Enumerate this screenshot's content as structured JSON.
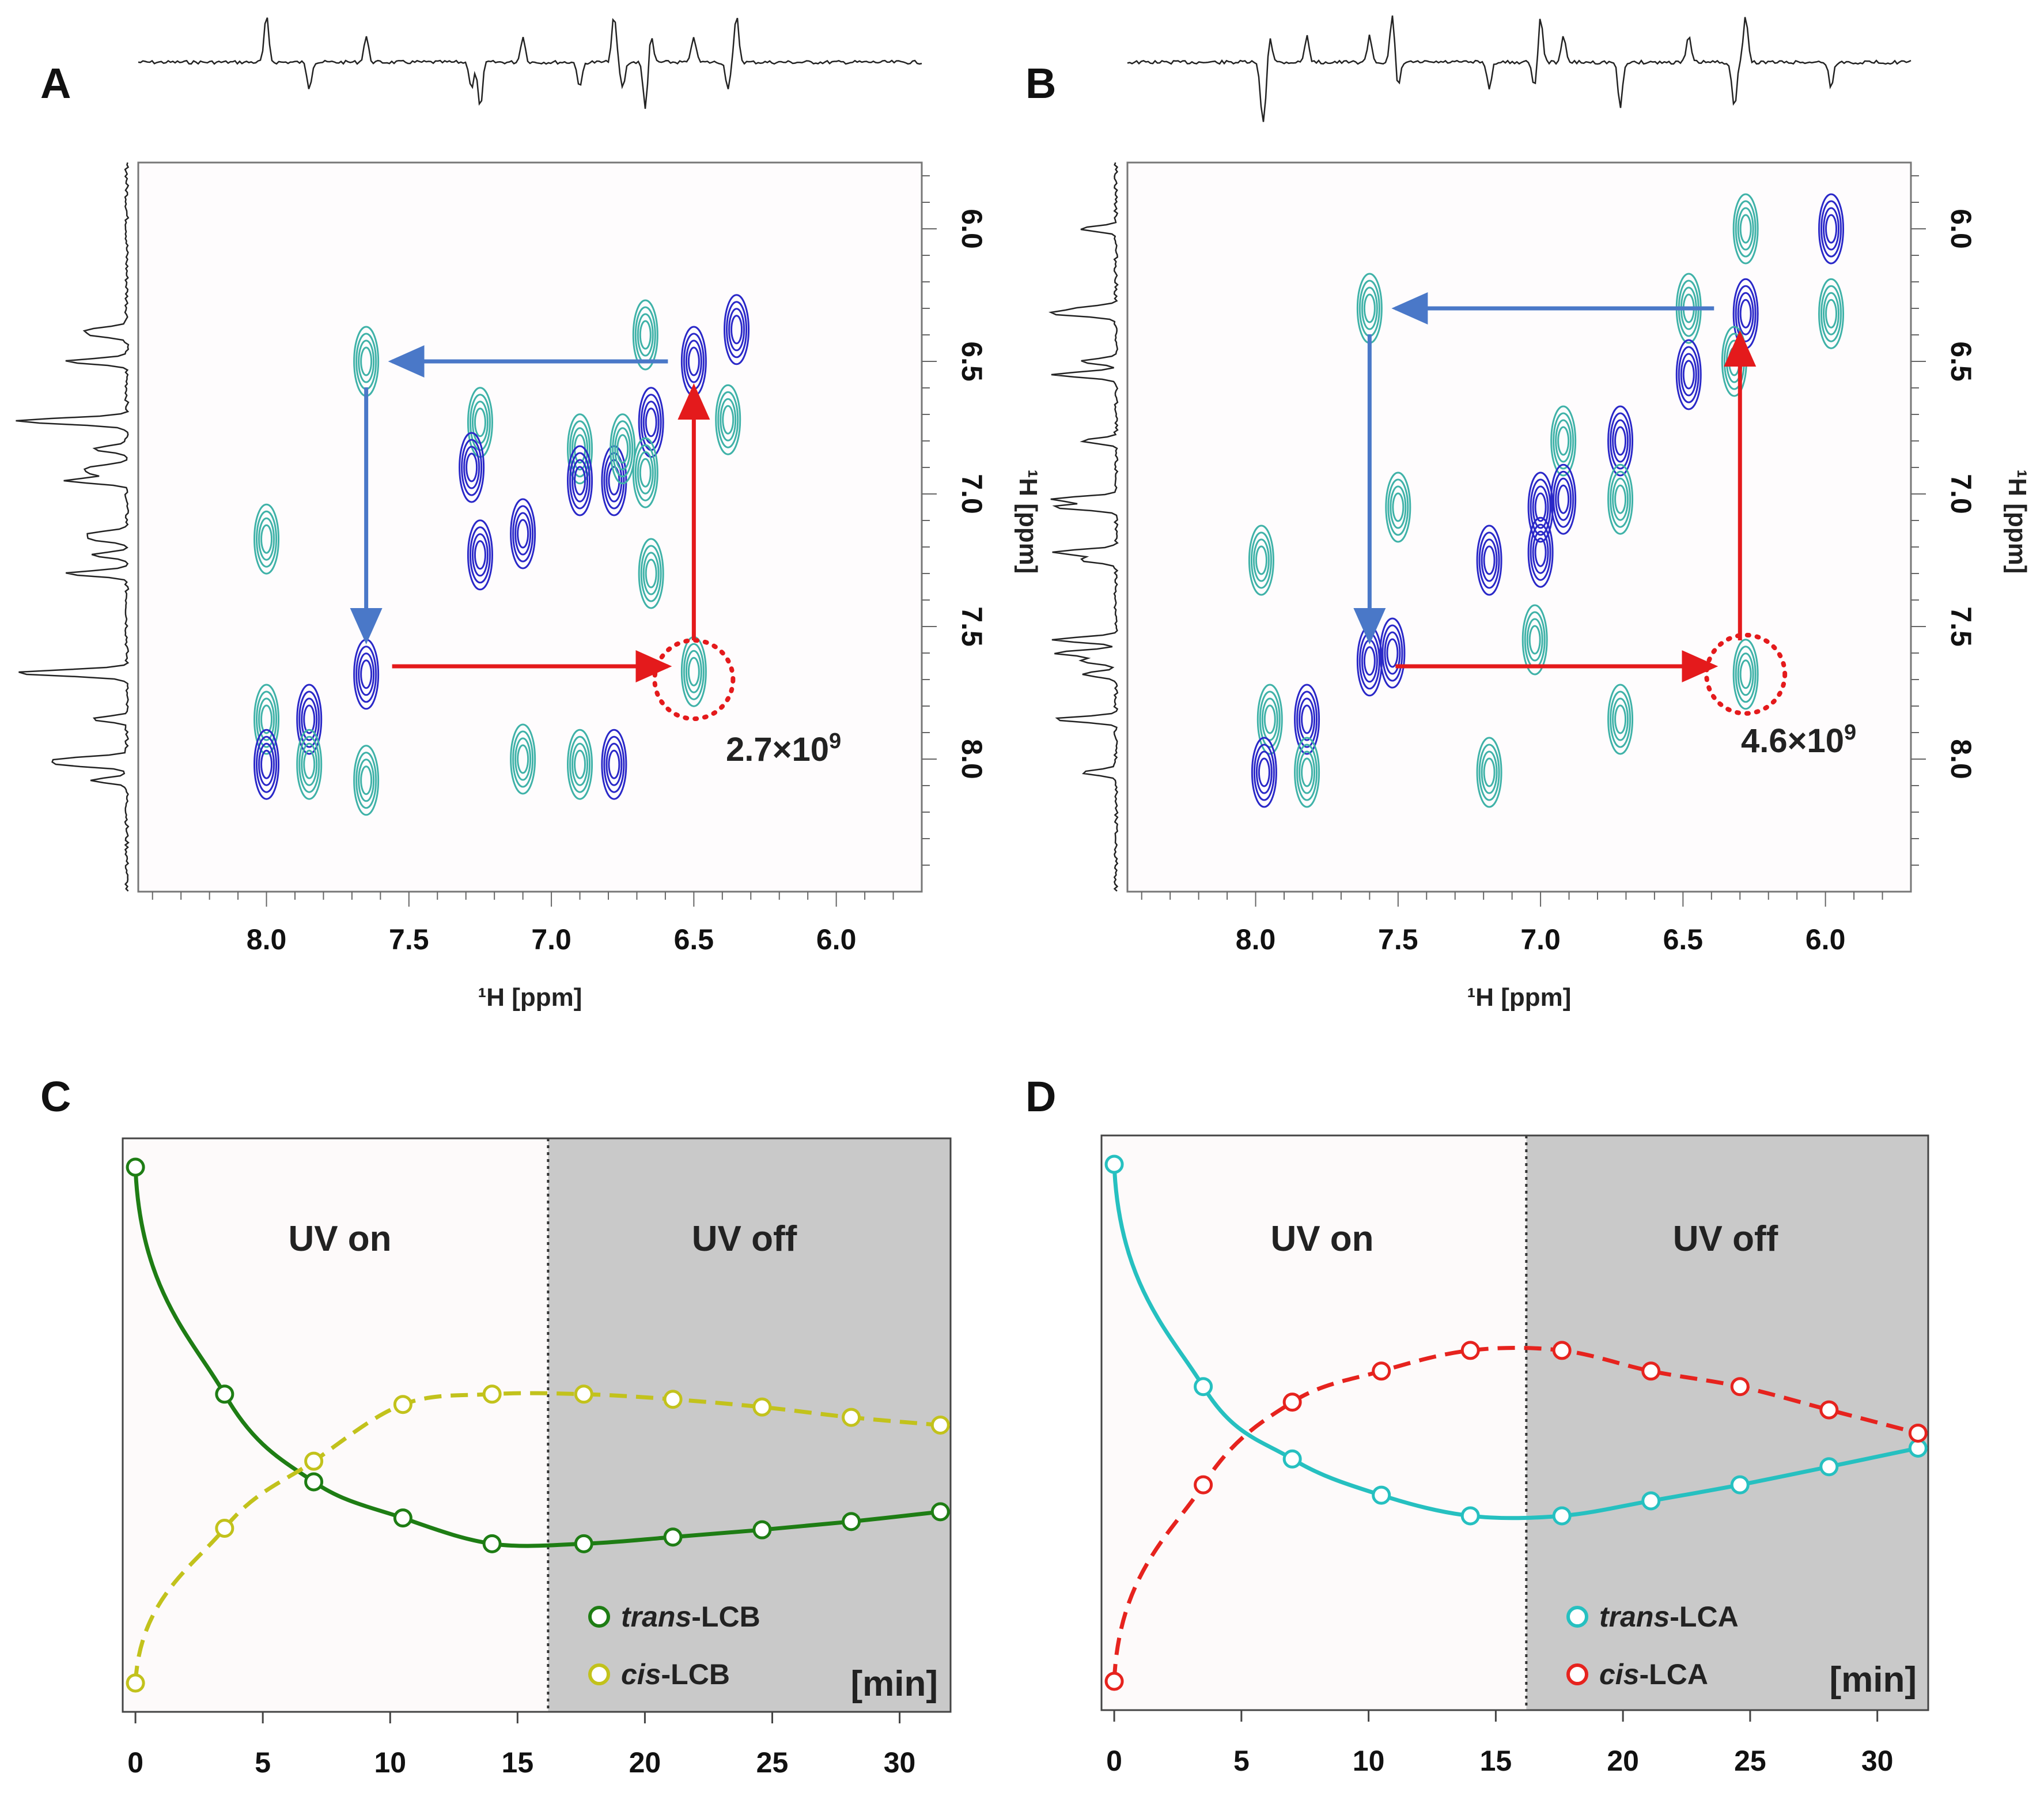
{
  "colors": {
    "pos": "#3fb2a8",
    "neg": "#2a28c8",
    "arrow_blue": "#4a78c8",
    "arrow_red": "#e41a1c",
    "trans_lcb": "#1e7d14",
    "cis_lcb": "#c2c21c",
    "trans_lca": "#26c0c0",
    "cis_lca": "#e6231e",
    "uv_off_bg": "#c9c9c9"
  },
  "chart_data": [
    {
      "panel": "A",
      "type": "contour-2d-nmr",
      "label": "A",
      "xlabel": "¹H [ppm]",
      "ylabel": "¹H [ppm]",
      "xticks": [
        "8.0",
        "7.5",
        "7.0",
        "6.5",
        "6.0"
      ],
      "yticks": [
        "6.0",
        "6.5",
        "7.0",
        "7.5",
        "8.0"
      ],
      "xlim": [
        8.45,
        5.7
      ],
      "ylim": [
        5.75,
        8.5
      ],
      "annotation": {
        "base": "2.7×10",
        "exp": "9"
      },
      "arrow_path_ppm": [
        [
          6.5,
          6.5
        ],
        [
          7.65,
          6.5
        ],
        [
          7.65,
          7.65
        ],
        [
          6.5,
          7.65
        ],
        [
          6.5,
          6.5
        ]
      ],
      "highlight_ppm": [
        6.5,
        7.7
      ],
      "peaks": [
        {
          "x": 8.0,
          "y": 7.85,
          "s": "pos"
        },
        {
          "x": 8.0,
          "y": 8.02,
          "s": "neg"
        },
        {
          "x": 7.85,
          "y": 7.85,
          "s": "neg"
        },
        {
          "x": 7.85,
          "y": 8.02,
          "s": "pos"
        },
        {
          "x": 8.0,
          "y": 7.17,
          "s": "pos"
        },
        {
          "x": 7.65,
          "y": 7.68,
          "s": "neg"
        },
        {
          "x": 7.65,
          "y": 8.08,
          "s": "pos"
        },
        {
          "x": 7.65,
          "y": 6.5,
          "s": "pos"
        },
        {
          "x": 7.25,
          "y": 7.23,
          "s": "neg"
        },
        {
          "x": 7.25,
          "y": 6.73,
          "s": "pos"
        },
        {
          "x": 7.1,
          "y": 7.15,
          "s": "neg"
        },
        {
          "x": 7.1,
          "y": 8.0,
          "s": "pos"
        },
        {
          "x": 6.9,
          "y": 6.83,
          "s": "pos"
        },
        {
          "x": 6.9,
          "y": 6.95,
          "s": "neg"
        },
        {
          "x": 6.78,
          "y": 6.95,
          "s": "neg"
        },
        {
          "x": 6.75,
          "y": 6.83,
          "s": "pos"
        },
        {
          "x": 6.65,
          "y": 6.73,
          "s": "neg"
        },
        {
          "x": 6.67,
          "y": 6.92,
          "s": "pos"
        },
        {
          "x": 6.65,
          "y": 7.3,
          "s": "pos"
        },
        {
          "x": 6.67,
          "y": 6.4,
          "s": "pos"
        },
        {
          "x": 6.5,
          "y": 6.5,
          "s": "neg"
        },
        {
          "x": 6.38,
          "y": 6.72,
          "s": "pos"
        },
        {
          "x": 6.35,
          "y": 6.38,
          "s": "neg"
        },
        {
          "x": 6.5,
          "y": 7.67,
          "s": "pos"
        },
        {
          "x": 7.28,
          "y": 6.9,
          "s": "neg"
        },
        {
          "x": 6.9,
          "y": 8.02,
          "s": "pos"
        },
        {
          "x": 6.78,
          "y": 8.02,
          "s": "neg"
        }
      ]
    },
    {
      "panel": "B",
      "type": "contour-2d-nmr",
      "label": "B",
      "xlabel": "¹H [ppm]",
      "ylabel": "¹H [ppm]",
      "xticks": [
        "8.0",
        "7.5",
        "7.0",
        "6.5",
        "6.0"
      ],
      "yticks": [
        "6.0",
        "6.5",
        "7.0",
        "7.5",
        "8.0"
      ],
      "xlim": [
        8.45,
        5.7
      ],
      "ylim": [
        5.75,
        8.5
      ],
      "annotation": {
        "base": "4.6×10",
        "exp": "9"
      },
      "arrow_path_ppm": [
        [
          6.3,
          6.3
        ],
        [
          7.6,
          6.3
        ],
        [
          7.6,
          7.65
        ],
        [
          6.3,
          7.65
        ],
        [
          6.3,
          6.3
        ]
      ],
      "highlight_ppm": [
        6.28,
        7.68
      ],
      "peaks": [
        {
          "x": 6.28,
          "y": 6.0,
          "s": "pos"
        },
        {
          "x": 5.98,
          "y": 6.0,
          "s": "neg"
        },
        {
          "x": 5.98,
          "y": 6.32,
          "s": "pos"
        },
        {
          "x": 6.28,
          "y": 6.32,
          "s": "neg"
        },
        {
          "x": 6.48,
          "y": 6.3,
          "s": "pos"
        },
        {
          "x": 6.48,
          "y": 6.55,
          "s": "neg"
        },
        {
          "x": 6.32,
          "y": 6.5,
          "s": "pos"
        },
        {
          "x": 7.6,
          "y": 6.3,
          "s": "pos"
        },
        {
          "x": 7.5,
          "y": 7.05,
          "s": "pos"
        },
        {
          "x": 7.6,
          "y": 7.63,
          "s": "neg"
        },
        {
          "x": 7.52,
          "y": 7.6,
          "s": "neg"
        },
        {
          "x": 7.98,
          "y": 7.25,
          "s": "pos"
        },
        {
          "x": 7.95,
          "y": 7.85,
          "s": "pos"
        },
        {
          "x": 7.97,
          "y": 8.05,
          "s": "neg"
        },
        {
          "x": 7.82,
          "y": 7.85,
          "s": "neg"
        },
        {
          "x": 7.82,
          "y": 8.05,
          "s": "pos"
        },
        {
          "x": 7.18,
          "y": 7.25,
          "s": "neg"
        },
        {
          "x": 7.18,
          "y": 8.05,
          "s": "pos"
        },
        {
          "x": 7.0,
          "y": 7.05,
          "s": "neg"
        },
        {
          "x": 7.02,
          "y": 7.55,
          "s": "pos"
        },
        {
          "x": 6.92,
          "y": 6.8,
          "s": "pos"
        },
        {
          "x": 6.92,
          "y": 7.02,
          "s": "neg"
        },
        {
          "x": 6.72,
          "y": 6.8,
          "s": "neg"
        },
        {
          "x": 6.72,
          "y": 7.02,
          "s": "pos"
        },
        {
          "x": 6.28,
          "y": 7.68,
          "s": "pos"
        },
        {
          "x": 7.0,
          "y": 7.22,
          "s": "neg"
        },
        {
          "x": 6.72,
          "y": 7.85,
          "s": "pos"
        }
      ]
    },
    {
      "panel": "C",
      "type": "line",
      "label": "C",
      "xlabel": "[min]",
      "xlim": [
        -0.5,
        32
      ],
      "xticks": [
        "0",
        "5",
        "10",
        "15",
        "20",
        "25",
        "30"
      ],
      "divider_x": 16.2,
      "regions": {
        "on": "UV on",
        "off": "UV off"
      },
      "series": [
        {
          "name_it": "trans",
          "name_rest": "-LCB",
          "style": "solid",
          "color_key": "trans_lcb",
          "x": [
            0,
            3.5,
            7,
            10.5,
            14,
            17.6,
            21.1,
            24.6,
            28.1,
            31.6
          ],
          "y": [
            1.0,
            0.56,
            0.39,
            0.32,
            0.27,
            0.27,
            0.283,
            0.297,
            0.313,
            0.332
          ]
        },
        {
          "name_it": "cis",
          "name_rest": "-LCB",
          "style": "dashed",
          "color_key": "cis_lcb",
          "x": [
            0,
            3.5,
            7,
            10.5,
            14,
            17.6,
            21.1,
            24.6,
            28.1,
            31.6
          ],
          "y": [
            0.0,
            0.3,
            0.43,
            0.54,
            0.56,
            0.56,
            0.55,
            0.535,
            0.515,
            0.5
          ]
        }
      ]
    },
    {
      "panel": "D",
      "type": "line",
      "label": "D",
      "xlabel": "[min]",
      "xlim": [
        -0.5,
        32
      ],
      "xticks": [
        "0",
        "5",
        "10",
        "15",
        "20",
        "25",
        "30"
      ],
      "divider_x": 16.2,
      "regions": {
        "on": "UV on",
        "off": "UV off"
      },
      "series": [
        {
          "name_it": "trans",
          "name_rest": "-LCA",
          "style": "solid",
          "color_key": "trans_lca",
          "x": [
            0,
            3.5,
            7,
            10.5,
            14,
            17.6,
            21.1,
            24.6,
            28.1,
            31.6
          ],
          "y": [
            1.0,
            0.57,
            0.43,
            0.36,
            0.32,
            0.32,
            0.349,
            0.38,
            0.415,
            0.451
          ]
        },
        {
          "name_it": "cis",
          "name_rest": "-LCA",
          "style": "dashed",
          "color_key": "cis_lca",
          "x": [
            0,
            3.5,
            7,
            10.5,
            14,
            17.6,
            21.1,
            24.6,
            28.1,
            31.6
          ],
          "y": [
            0.0,
            0.38,
            0.54,
            0.6,
            0.64,
            0.64,
            0.6,
            0.57,
            0.525,
            0.48
          ]
        }
      ]
    }
  ]
}
